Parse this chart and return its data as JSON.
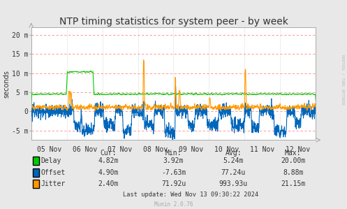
{
  "title": "NTP timing statistics for system peer - by week",
  "ylabel": "seconds",
  "bg_color": "#e8e8e8",
  "plot_bg_color": "#ffffff",
  "grid_color_h": "#ff8888",
  "grid_color_v": "#bbbbbb",
  "delay_color": "#00cc00",
  "offset_color": "#0066bb",
  "jitter_color": "#ff9900",
  "ylim": [
    -7.5,
    22
  ],
  "yticks": [
    -5,
    0,
    5,
    10,
    15,
    20
  ],
  "ytick_labels": [
    "-5 m",
    "0",
    "5 m",
    "10 m",
    "15 m",
    "20 m"
  ],
  "xtick_positions": [
    0,
    1,
    2,
    3,
    4,
    5,
    6,
    7
  ],
  "xtick_labels": [
    "05 Nov",
    "06 Nov",
    "07 Nov",
    "08 Nov",
    "09 Nov",
    "10 Nov",
    "11 Nov",
    "12 Nov"
  ],
  "legend_labels": [
    "Delay",
    "Offset",
    "Jitter"
  ],
  "cur_vals": [
    "4.82m",
    "4.90m",
    "2.40m"
  ],
  "min_vals": [
    "3.92m",
    "-7.63m",
    "71.92u"
  ],
  "avg_vals": [
    "5.24m",
    "77.24u",
    "993.93u"
  ],
  "max_vals": [
    "20.00m",
    "8.88m",
    "21.15m"
  ],
  "last_update": "Last update: Wed Nov 13 09:30:22 2024",
  "munin_label": "Munin 2.0.76",
  "rrdtool_label": "RRDTOOL / TOBI OETIKER",
  "title_fontsize": 10,
  "axis_fontsize": 7,
  "table_fontsize": 7
}
